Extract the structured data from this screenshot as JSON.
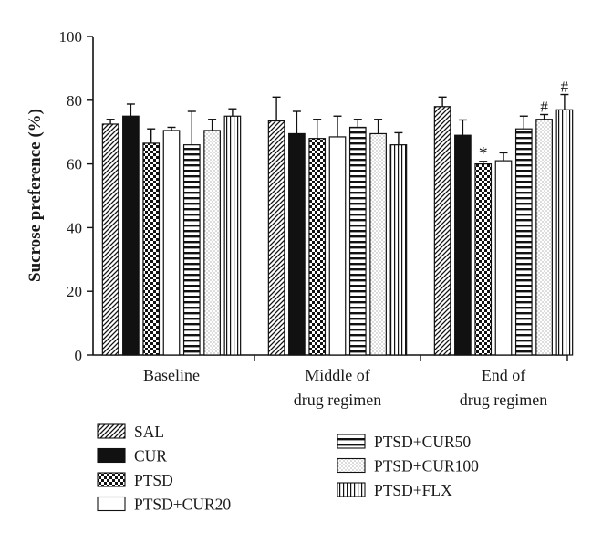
{
  "chart_data": {
    "type": "bar",
    "title": "",
    "xlabel": "",
    "ylabel": "Sucrose preference (%)",
    "ylim": [
      0,
      100
    ],
    "yticks": [
      0,
      20,
      40,
      60,
      80,
      100
    ],
    "grid": false,
    "legend_position": "bottom",
    "categories": [
      {
        "lines": [
          "Baseline"
        ]
      },
      {
        "lines": [
          "Middle of",
          "drug regimen"
        ]
      },
      {
        "lines": [
          "End of",
          "drug regimen"
        ]
      }
    ],
    "series": [
      {
        "name": "SAL",
        "pattern": "diagonal",
        "values": [
          72.5,
          73.5,
          78
        ],
        "errors": [
          1.5,
          7.5,
          3
        ],
        "marks": [
          "",
          "",
          ""
        ]
      },
      {
        "name": "CUR",
        "pattern": "solid",
        "values": [
          75,
          69.5,
          69
        ],
        "errors": [
          3.8,
          7,
          4.8
        ],
        "marks": [
          "",
          "",
          ""
        ]
      },
      {
        "name": "PTSD",
        "pattern": "checker",
        "values": [
          66.5,
          68,
          60
        ],
        "errors": [
          4.5,
          6,
          0.8
        ],
        "marks": [
          "",
          "",
          "*"
        ]
      },
      {
        "name": "PTSD+CUR20",
        "pattern": "white",
        "values": [
          70.5,
          68.5,
          61
        ],
        "errors": [
          1,
          6.5,
          2.5
        ],
        "marks": [
          "",
          "",
          ""
        ]
      },
      {
        "name": "PTSD+CUR50",
        "pattern": "horizontal",
        "values": [
          66,
          71.5,
          71
        ],
        "errors": [
          10.5,
          2.5,
          4
        ],
        "marks": [
          "",
          "",
          ""
        ]
      },
      {
        "name": "PTSD+CUR100",
        "pattern": "dots",
        "values": [
          70.5,
          69.5,
          74
        ],
        "errors": [
          3.5,
          4.5,
          1.5
        ],
        "marks": [
          "",
          "",
          "#"
        ]
      },
      {
        "name": "PTSD+FLX",
        "pattern": "vertical",
        "values": [
          75,
          66,
          77
        ],
        "errors": [
          2.3,
          3.8,
          4.8
        ],
        "marks": [
          "",
          "",
          "#"
        ]
      }
    ]
  }
}
